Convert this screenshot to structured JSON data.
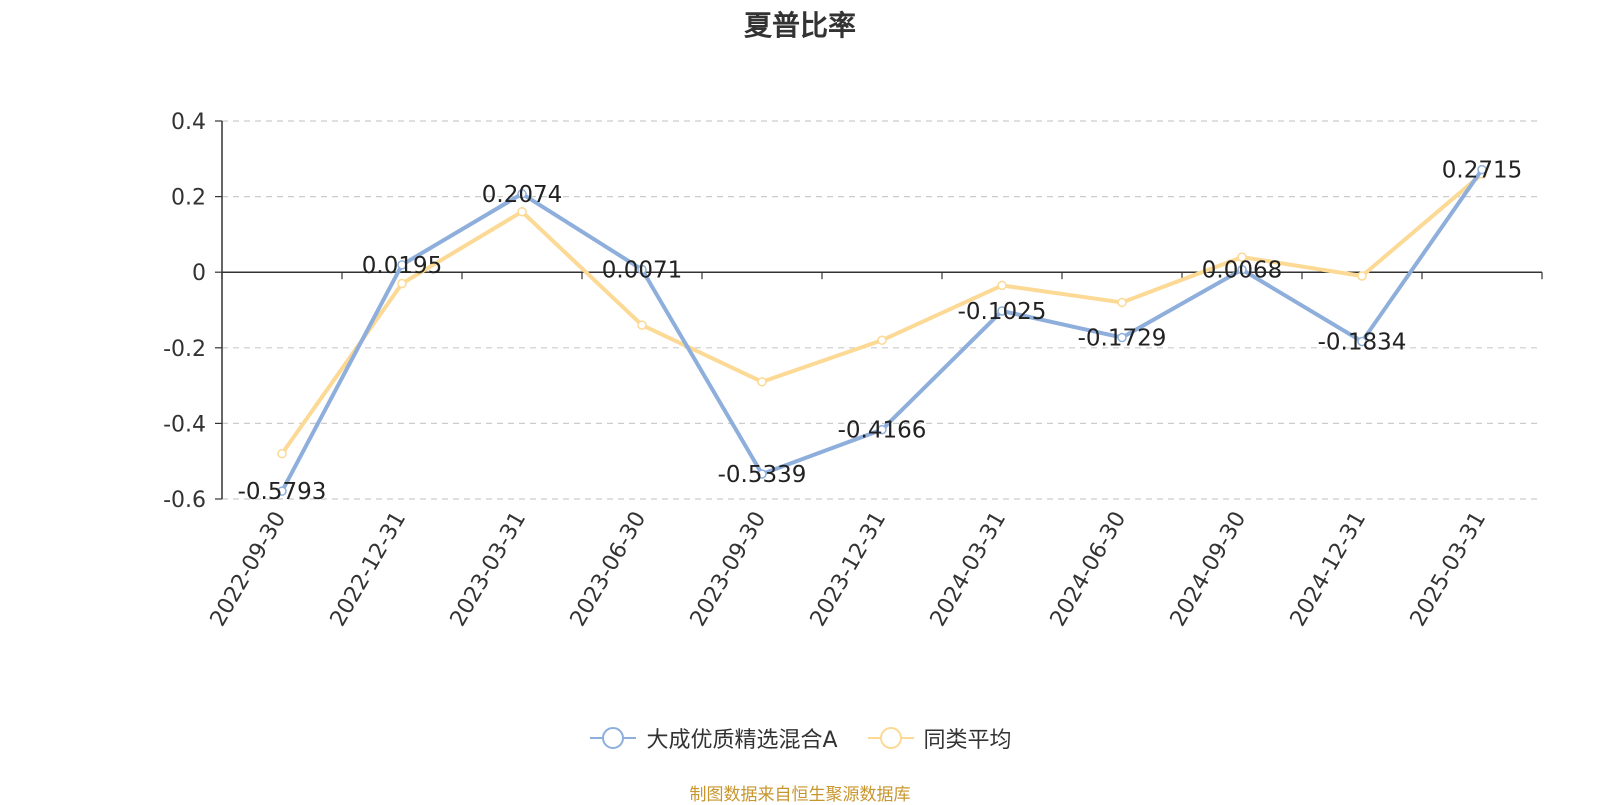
{
  "chart_data": {
    "type": "line",
    "title": "夏普比率",
    "xlabel": "",
    "ylabel": "",
    "x": [
      "2022-09-30",
      "2022-12-31",
      "2023-03-31",
      "2023-06-30",
      "2023-09-30",
      "2023-12-31",
      "2024-03-31",
      "2024-06-30",
      "2024-09-30",
      "2024-12-31",
      "2025-03-31"
    ],
    "ylim": [
      -0.6,
      0.4
    ],
    "yticks": [
      -0.6,
      -0.4,
      -0.2,
      0,
      0.2,
      0.4
    ],
    "ytick_labels": [
      "-0.6",
      "-0.4",
      "-0.2",
      "0",
      "0.2",
      "0.4"
    ],
    "grid": true,
    "legend_position": "bottom",
    "series": [
      {
        "name": "大成优质精选混合A",
        "color": "#8eaedb",
        "values": [
          -0.5793,
          0.0195,
          0.2074,
          0.0071,
          -0.5339,
          -0.4166,
          -0.1025,
          -0.1729,
          0.0068,
          -0.1834,
          0.2715
        ],
        "labels": [
          "-0.5793",
          "0.0195",
          "0.2074",
          "0.0071",
          "-0.5339",
          "-0.4166",
          "-0.1025",
          "-0.1729",
          "0.0068",
          "-0.1834",
          "0.2715"
        ]
      },
      {
        "name": "同类平均",
        "color": "#fcd994",
        "values": [
          -0.48,
          -0.03,
          0.16,
          -0.14,
          -0.29,
          -0.18,
          -0.035,
          -0.08,
          0.04,
          -0.01,
          0.26
        ]
      }
    ]
  },
  "footer": "制图数据来自恒生聚源数据库"
}
